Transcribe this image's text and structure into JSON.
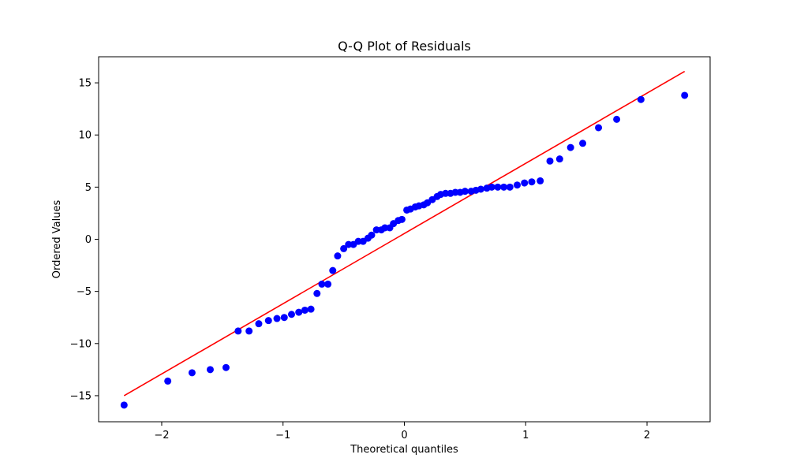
{
  "chart_data": {
    "type": "scatter",
    "title": "Q-Q Plot of Residuals",
    "xlabel": "Theoretical quantiles",
    "ylabel": "Ordered Values",
    "xlim": [
      -2.52,
      2.52
    ],
    "ylim": [
      -17.5,
      17.5
    ],
    "grid": false,
    "legend": "none",
    "xticks": [
      {
        "value": -2,
        "label": "−2"
      },
      {
        "value": -1,
        "label": "−1"
      },
      {
        "value": 0,
        "label": "0"
      },
      {
        "value": 1,
        "label": "1"
      },
      {
        "value": 2,
        "label": "2"
      }
    ],
    "yticks": [
      {
        "value": -15,
        "label": "−15"
      },
      {
        "value": -10,
        "label": "−10"
      },
      {
        "value": -5,
        "label": "−5"
      },
      {
        "value": 0,
        "label": "0"
      },
      {
        "value": 5,
        "label": "5"
      },
      {
        "value": 10,
        "label": "10"
      },
      {
        "value": 15,
        "label": "15"
      }
    ],
    "points": {
      "color": "#0000ff",
      "x": [
        -2.31,
        -1.95,
        -1.75,
        -1.6,
        -1.47,
        -1.37,
        -1.28,
        -1.2,
        -1.12,
        -1.05,
        -0.99,
        -0.93,
        -0.87,
        -0.82,
        -0.77,
        -0.72,
        -0.68,
        -0.63,
        -0.59,
        -0.55,
        -0.5,
        -0.46,
        -0.42,
        -0.38,
        -0.34,
        -0.3,
        -0.27,
        -0.23,
        -0.19,
        -0.16,
        -0.12,
        -0.09,
        -0.05,
        -0.02,
        0.02,
        0.05,
        0.09,
        0.12,
        0.16,
        0.19,
        0.23,
        0.27,
        0.3,
        0.34,
        0.38,
        0.42,
        0.46,
        0.5,
        0.55,
        0.59,
        0.63,
        0.68,
        0.72,
        0.77,
        0.82,
        0.87,
        0.93,
        0.99,
        1.05,
        1.12,
        1.2,
        1.28,
        1.37,
        1.47,
        1.6,
        1.75,
        1.95,
        2.31
      ],
      "y": [
        -15.9,
        -13.6,
        -12.8,
        -12.5,
        -12.3,
        -8.8,
        -8.8,
        -8.1,
        -7.8,
        -7.6,
        -7.5,
        -7.2,
        -7.0,
        -6.8,
        -6.7,
        -5.2,
        -4.3,
        -4.3,
        -3.0,
        -1.6,
        -0.9,
        -0.5,
        -0.5,
        -0.2,
        -0.2,
        0.1,
        0.4,
        0.9,
        0.9,
        1.1,
        1.1,
        1.5,
        1.8,
        1.9,
        2.8,
        2.9,
        3.1,
        3.2,
        3.3,
        3.5,
        3.8,
        4.1,
        4.3,
        4.4,
        4.4,
        4.5,
        4.5,
        4.6,
        4.6,
        4.7,
        4.8,
        4.9,
        5.0,
        5.0,
        5.0,
        5.0,
        5.2,
        5.4,
        5.5,
        5.6,
        7.5,
        7.7,
        8.8,
        9.2,
        10.7,
        11.5,
        13.4,
        13.8
      ]
    },
    "fit_line": {
      "color": "#ff0000",
      "x": [
        -2.31,
        2.31
      ],
      "y": [
        -15.0,
        16.1
      ]
    }
  }
}
